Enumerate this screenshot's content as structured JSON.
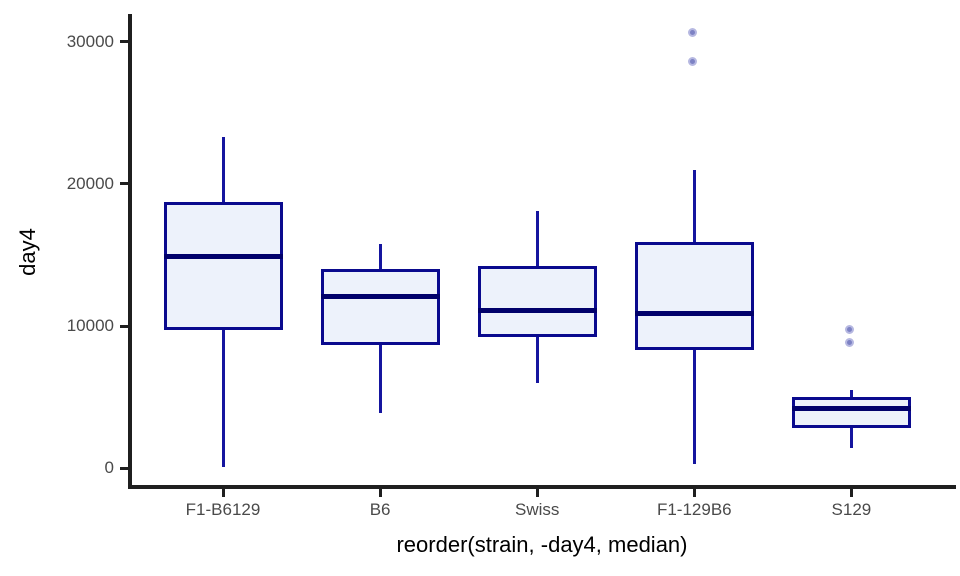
{
  "chart_data": {
    "type": "boxplot",
    "title": "",
    "xlabel": "reorder(strain, -day4, median)",
    "ylabel": "day4",
    "categories": [
      "F1-B6129",
      "B6",
      "Swiss",
      "F1-129B6",
      "S129"
    ],
    "series": [
      {
        "name": "F1-B6129",
        "whisker_low": 100,
        "q1": 9700,
        "median": 14900,
        "q3": 18700,
        "whisker_high": 23300,
        "outliers": []
      },
      {
        "name": "B6",
        "whisker_low": 3900,
        "q1": 8700,
        "median": 12100,
        "q3": 14000,
        "whisker_high": 15800,
        "outliers": []
      },
      {
        "name": "Swiss",
        "whisker_low": 6000,
        "q1": 9200,
        "median": 11100,
        "q3": 14200,
        "whisker_high": 18100,
        "outliers": []
      },
      {
        "name": "F1-129B6",
        "whisker_low": 300,
        "q1": 8300,
        "median": 10900,
        "q3": 15900,
        "whisker_high": 21000,
        "outliers": [
          28500,
          30500
        ]
      },
      {
        "name": "S129",
        "whisker_low": 1400,
        "q1": 2800,
        "median": 4200,
        "q3": 5000,
        "whisker_high": 5500,
        "outliers": [
          8700,
          9600
        ]
      }
    ],
    "y_ticks": [
      0,
      10000,
      20000,
      30000
    ],
    "ylim": [
      0,
      32000
    ],
    "grid": false,
    "legend": "none",
    "colors": {
      "box_border": "#0a0a8e",
      "box_fill": "#edf2fb",
      "median": "#01016b",
      "whisker": "#15159f",
      "outlier_fill": "#7d82c4",
      "outlier_ring": "#b6b8e1",
      "axis": "#1f1f1f",
      "tick_label": "#4a4a4a",
      "title_text": "#000000"
    }
  }
}
